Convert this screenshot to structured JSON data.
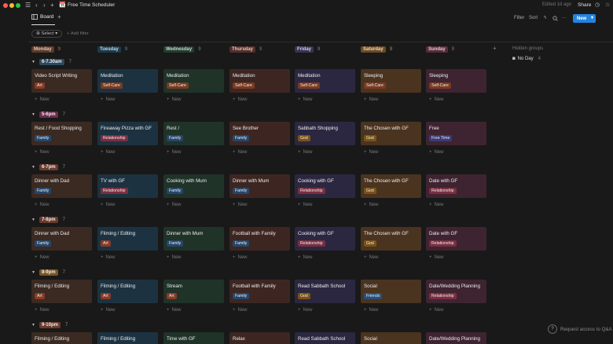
{
  "titlebar": {
    "page_icon": "📆",
    "title": "Free Time Scheduler",
    "edited": "Edited 1d ago",
    "share": "Share"
  },
  "view": {
    "tab_label": "Board",
    "filter": "Filter",
    "sort": "Sort",
    "new_button": "New"
  },
  "filters": {
    "select": "Select",
    "add_filter": "Add filter"
  },
  "columns": [
    {
      "name": "Monday",
      "count": "9",
      "bg": "#5a3a2c",
      "fg": "#e9c6b5",
      "countColor": "#c46a4a"
    },
    {
      "name": "Tuesday",
      "count": "9",
      "bg": "#1e3a4a",
      "fg": "#bcd8e8",
      "countColor": "#4a8cb0"
    },
    {
      "name": "Wednesday",
      "count": "9",
      "bg": "#243b30",
      "fg": "#c2dccb",
      "countColor": "#4f9b6f"
    },
    {
      "name": "Thursday",
      "count": "9",
      "bg": "#52302b",
      "fg": "#ebc4bd",
      "countColor": "#c45c50"
    },
    {
      "name": "Friday",
      "count": "9",
      "bg": "#3a3252",
      "fg": "#d2c9ec",
      "countColor": "#8a76c4"
    },
    {
      "name": "Saturday",
      "count": "9",
      "bg": "#6a4a26",
      "fg": "#f2d7b0",
      "countColor": "#c48a40"
    },
    {
      "name": "Sunday",
      "count": "9",
      "bg": "#532e3d",
      "fg": "#ecc4d2",
      "countColor": "#c4587e"
    }
  ],
  "hidden_groups": {
    "title": "Hidden groups",
    "item": "No Day",
    "count": "4"
  },
  "new_label": "New",
  "groups": [
    {
      "label": "6-7.30am",
      "count": "7",
      "pill": "#2b4a60",
      "cards": [
        {
          "title": "Video Script Writing",
          "tag": "Art"
        },
        {
          "title": "Meditation",
          "tag": "Self-Care"
        },
        {
          "title": "Meditation",
          "tag": "Self-Care"
        },
        {
          "title": "Meditation",
          "tag": "Self-Care"
        },
        {
          "title": "Meditation",
          "tag": "Self-Care"
        },
        {
          "title": "Sleeping",
          "tag": "Self-Care"
        },
        {
          "title": "Sleeping",
          "tag": "Self-Care"
        }
      ]
    },
    {
      "label": "5-6pm",
      "count": "7",
      "pill": "#6b2d4a",
      "cards": [
        {
          "title": "Rest / Food Shopping",
          "tag": "Family"
        },
        {
          "title": "Fireaway Pizza with GF",
          "tag": "Relationship"
        },
        {
          "title": "Rest /",
          "tag": "Family"
        },
        {
          "title": "See Brother",
          "tag": "Family"
        },
        {
          "title": "Sabbath Shopping",
          "tag": "God"
        },
        {
          "title": "The Chosen with GF",
          "tag": "God"
        },
        {
          "title": "Free",
          "tag": "Free Time"
        }
      ]
    },
    {
      "label": "6-7pm",
      "count": "7",
      "pill": "#6a3a2c",
      "cards": [
        {
          "title": "Dinner with Dad",
          "tag": "Family"
        },
        {
          "title": "TV with GF",
          "tag": "Relationship"
        },
        {
          "title": "Cooking with Mum",
          "tag": "Family"
        },
        {
          "title": "Dinner with Mum",
          "tag": "Family"
        },
        {
          "title": "Cooking with GF",
          "tag": "Relationship"
        },
        {
          "title": "The Chosen with GF",
          "tag": "God"
        },
        {
          "title": "Date with GF",
          "tag": "Relationship"
        }
      ]
    },
    {
      "label": "7-8pm",
      "count": "7",
      "pill": "#6a3a2c",
      "cards": [
        {
          "title": "Dinner with Dad",
          "tag": "Family"
        },
        {
          "title": "Filming / Editing",
          "tag": "Art"
        },
        {
          "title": "Dinner with Mum",
          "tag": "Family"
        },
        {
          "title": "Football with Family",
          "tag": "Family"
        },
        {
          "title": "Cooking with GF",
          "tag": "Relationship"
        },
        {
          "title": "The Chosen with GF",
          "tag": "God"
        },
        {
          "title": "Date with GF",
          "tag": "Relationship"
        }
      ]
    },
    {
      "label": "8-9pm",
      "count": "7",
      "pill": "#7a5526",
      "cards": [
        {
          "title": "Filming / Editing",
          "tag": "Art"
        },
        {
          "title": "Filming / Editing",
          "tag": "Art"
        },
        {
          "title": "Stream",
          "tag": "Art"
        },
        {
          "title": "Football with Family",
          "tag": "Family"
        },
        {
          "title": "Read Sabbath School",
          "tag": "God"
        },
        {
          "title": "Social",
          "tag": "Friends"
        },
        {
          "title": "Date/Wedding Planning",
          "tag": "Relationship"
        }
      ]
    },
    {
      "label": "9-10pm",
      "count": "7",
      "pill": "#6a3a2c",
      "cards": [
        {
          "title": "Filming / Editing",
          "tag": ""
        },
        {
          "title": "Filming / Editing",
          "tag": ""
        },
        {
          "title": "Time with GF",
          "tag": ""
        },
        {
          "title": "Relax",
          "tag": ""
        },
        {
          "title": "Read Sabbath School",
          "tag": ""
        },
        {
          "title": "Social",
          "tag": ""
        },
        {
          "title": "Date/Wedding Planning",
          "tag": ""
        }
      ]
    }
  ],
  "tag_colors": {
    "Art": "#8a3a26",
    "Self-Care": "#7a3a20",
    "Family": "#25466a",
    "Relationship": "#7a2e40",
    "God": "#7a5216",
    "Free Time": "#3a3a78",
    "Friends": "#27507a"
  },
  "card_colors": [
    "#3a2a22",
    "#1c3240",
    "#1f3329",
    "#3d2622",
    "#2c2740",
    "#4a3420",
    "#3e2430"
  ],
  "qa": "Request access to Q&A"
}
